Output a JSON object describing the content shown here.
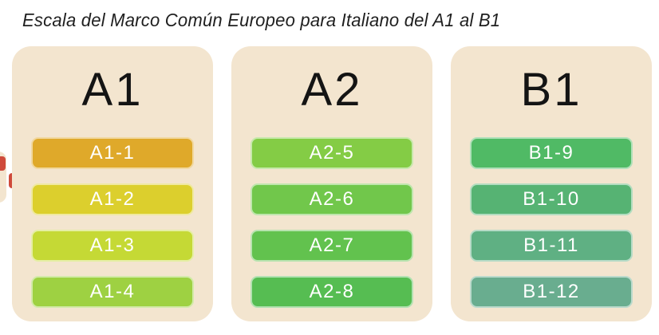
{
  "title": "Escala del Marco Común Europeo para Italiano del A1 al B1",
  "theme": {
    "card_background": "#f3e5cf",
    "header_text_color": "#141414",
    "pill_text_color": "#ffffff",
    "pill_border_color": "rgba(255,255,255,0.55)"
  },
  "columns": [
    {
      "header": "A1",
      "levels": [
        {
          "label": "A1-1",
          "color": "#dfa92a"
        },
        {
          "label": "A1-2",
          "color": "#dccf2d"
        },
        {
          "label": "A1-3",
          "color": "#c5d935"
        },
        {
          "label": "A1-4",
          "color": "#9ed142"
        }
      ]
    },
    {
      "header": "A2",
      "levels": [
        {
          "label": "A2-5",
          "color": "#84cc45"
        },
        {
          "label": "A2-6",
          "color": "#71c74b"
        },
        {
          "label": "A2-7",
          "color": "#62c24e"
        },
        {
          "label": "A2-8",
          "color": "#56bd52"
        }
      ]
    },
    {
      "header": "B1",
      "levels": [
        {
          "label": "B1-9",
          "color": "#50ba65"
        },
        {
          "label": "B1-10",
          "color": "#56b373"
        },
        {
          "label": "B1-11",
          "color": "#5fb083"
        },
        {
          "label": "B1-12",
          "color": "#69ad8f"
        }
      ]
    }
  ],
  "edge_fragments": {
    "card_color": "#f3e5cf",
    "pill_color": "#cf4a3a"
  }
}
